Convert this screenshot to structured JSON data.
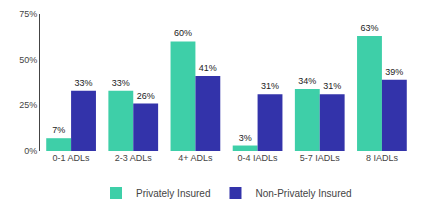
{
  "chart_data": {
    "type": "bar",
    "categories": [
      "0-1 ADLs",
      "2-3 ADLs",
      "4+ ADLs",
      "0-4 IADLs",
      "5-7 IADLs",
      "8 IADLs"
    ],
    "series": [
      {
        "name": "Privately Insured",
        "color": "#3ecfa8",
        "values": [
          7,
          33,
          60,
          3,
          34,
          63
        ],
        "value_labels": [
          "7%",
          "33%",
          "60%",
          "3%",
          "34%",
          "63%"
        ]
      },
      {
        "name": "Non-Privately Insured",
        "color": "#3333aa",
        "values": [
          33,
          26,
          41,
          31,
          31,
          39
        ],
        "value_labels": [
          "33%",
          "26%",
          "41%",
          "31%",
          "31%",
          "39%"
        ]
      }
    ],
    "ylim": [
      0,
      75
    ],
    "yticks": [
      {
        "value": 0,
        "label": "0%"
      },
      {
        "value": 25,
        "label": "25%"
      },
      {
        "value": 50,
        "label": "50%"
      },
      {
        "value": 75,
        "label": "75%"
      }
    ],
    "grid": false,
    "legend": "bottom",
    "data_labels": true
  }
}
